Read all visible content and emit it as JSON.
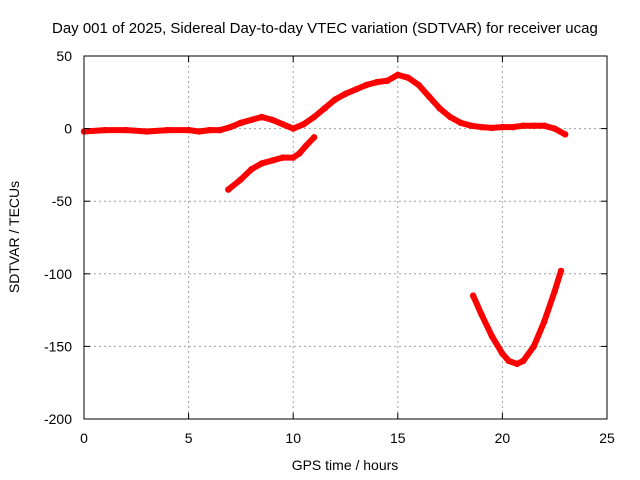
{
  "chart_data": {
    "type": "line",
    "title": "Day 001 of 2025, Sidereal Day-to-day VTEC variation (SDTVAR) for receiver ucag",
    "xlabel": "GPS time / hours",
    "ylabel": "SDTVAR / TECUs",
    "xlim": [
      0,
      25
    ],
    "ylim": [
      -200,
      50
    ],
    "xticks": [
      0,
      5,
      10,
      15,
      20,
      25
    ],
    "yticks": [
      -200,
      -150,
      -100,
      -50,
      0,
      50
    ],
    "grid": true,
    "color": "#ff0000",
    "series": [
      {
        "name": "main",
        "x": [
          0,
          1,
          2,
          3,
          4,
          5,
          5.5,
          6,
          6.5,
          7,
          7.5,
          8,
          8.5,
          9,
          9.5,
          10,
          10.5,
          11,
          11.5,
          12,
          12.5,
          13,
          13.5,
          14,
          14.5,
          15,
          15.5,
          16,
          16.5,
          17,
          17.5,
          18,
          18.5,
          19,
          19.5,
          20,
          20.5,
          21,
          21.5,
          22,
          22.5,
          23
        ],
        "y": [
          -2,
          -1,
          -1,
          -2,
          -1,
          -1,
          -2,
          -1,
          -1,
          1,
          4,
          6,
          8,
          6,
          3,
          0,
          3,
          8,
          14,
          20,
          24,
          27,
          30,
          32,
          33,
          37,
          35,
          30,
          22,
          14,
          8,
          4,
          2,
          1,
          0.5,
          1,
          1,
          2,
          2,
          2,
          0,
          -4
        ]
      },
      {
        "name": "lower-branch",
        "x": [
          6.9,
          7.5,
          8.0,
          8.5,
          9.0,
          9.5,
          10.0,
          10.3,
          10.6,
          11.0
        ],
        "y": [
          -42,
          -35,
          -28,
          -24,
          -22,
          -20,
          -20,
          -17,
          -12,
          -6
        ]
      },
      {
        "name": "dip",
        "x": [
          18.6,
          19.0,
          19.5,
          20.0,
          20.3,
          20.7,
          21.0,
          21.5,
          22.0,
          22.5,
          22.8
        ],
        "y": [
          -115,
          -128,
          -143,
          -155,
          -160,
          -162,
          -160,
          -150,
          -133,
          -112,
          -98
        ]
      }
    ]
  }
}
